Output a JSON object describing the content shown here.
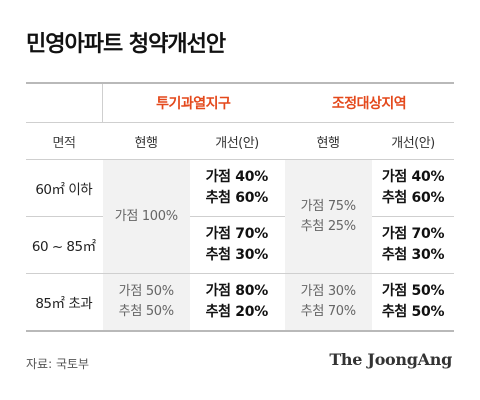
{
  "title": "민영아파트 청약개선안",
  "source": "자료: 국토부",
  "brand": "The JoongAng",
  "colors": {
    "group_header": "#e4491c",
    "current_cell_bg": "#f2f2f2"
  },
  "chart_data": {
    "type": "table",
    "title": "민영아파트 청약개선안",
    "groups": [
      "투기과열지구",
      "조정대상지역"
    ],
    "columns": [
      "면적",
      "현행",
      "개선(안)",
      "현행",
      "개선(안)"
    ],
    "row_labels": [
      "60㎡ 이하",
      "60 ~ 85㎡",
      "85㎡ 초과"
    ],
    "cells": {
      "g1_current_small": [
        "가점 100%"
      ],
      "g1_current_large": [
        "가점 50%",
        "추첨 50%"
      ],
      "g1_proposed": [
        [
          "가점 40%",
          "추첨 60%"
        ],
        [
          "가점 70%",
          "추첨 30%"
        ],
        [
          "가점 80%",
          "추첨 20%"
        ]
      ],
      "g2_current_small": [
        "가점 75%",
        "추첨 25%"
      ],
      "g2_current_large": [
        "가점 30%",
        "추첨 70%"
      ],
      "g2_proposed": [
        [
          "가점 40%",
          "추첨 60%"
        ],
        [
          "가점 70%",
          "추첨 30%"
        ],
        [
          "가점 50%",
          "추첨 50%"
        ]
      ]
    }
  }
}
